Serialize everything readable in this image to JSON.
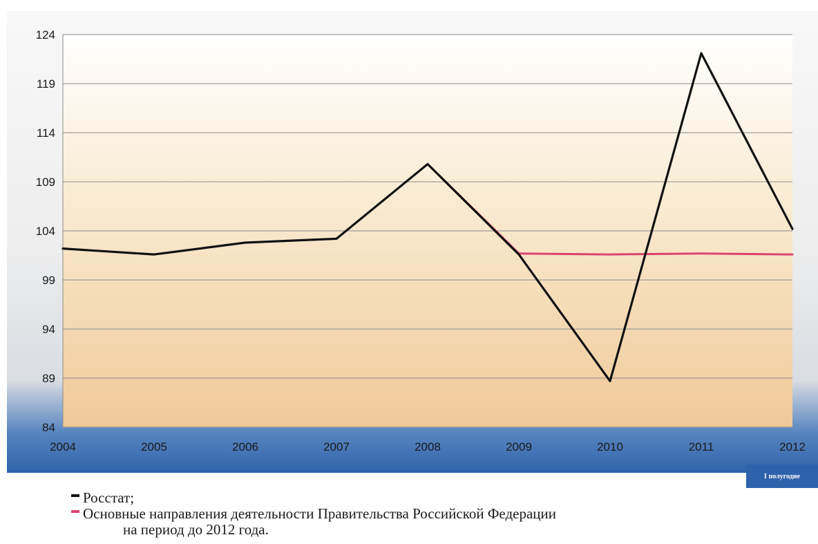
{
  "chart_data": {
    "type": "line",
    "x": [
      "2004",
      "2005",
      "2006",
      "2007",
      "2008",
      "2009",
      "2010",
      "2011",
      "2012"
    ],
    "yticks": [
      84,
      89,
      94,
      99,
      104,
      109,
      114,
      119,
      124
    ],
    "ylim": [
      84,
      124
    ],
    "grid": true,
    "series": [
      {
        "name": "Росстат;",
        "color": "#111111",
        "values": [
          102.2,
          101.6,
          102.8,
          103.2,
          110.8,
          101.6,
          88.7,
          122.1,
          104.2
        ]
      },
      {
        "name": "Основные направления деятельности Правительства Российской Федерации",
        "name_cont": "на период до 2012 года.",
        "color": "#d9436e",
        "values": [
          null,
          null,
          null,
          null,
          110.8,
          101.7,
          101.6,
          101.7,
          101.6
        ]
      }
    ],
    "note": "I полугодие",
    "legend_position": "bottom-left"
  }
}
